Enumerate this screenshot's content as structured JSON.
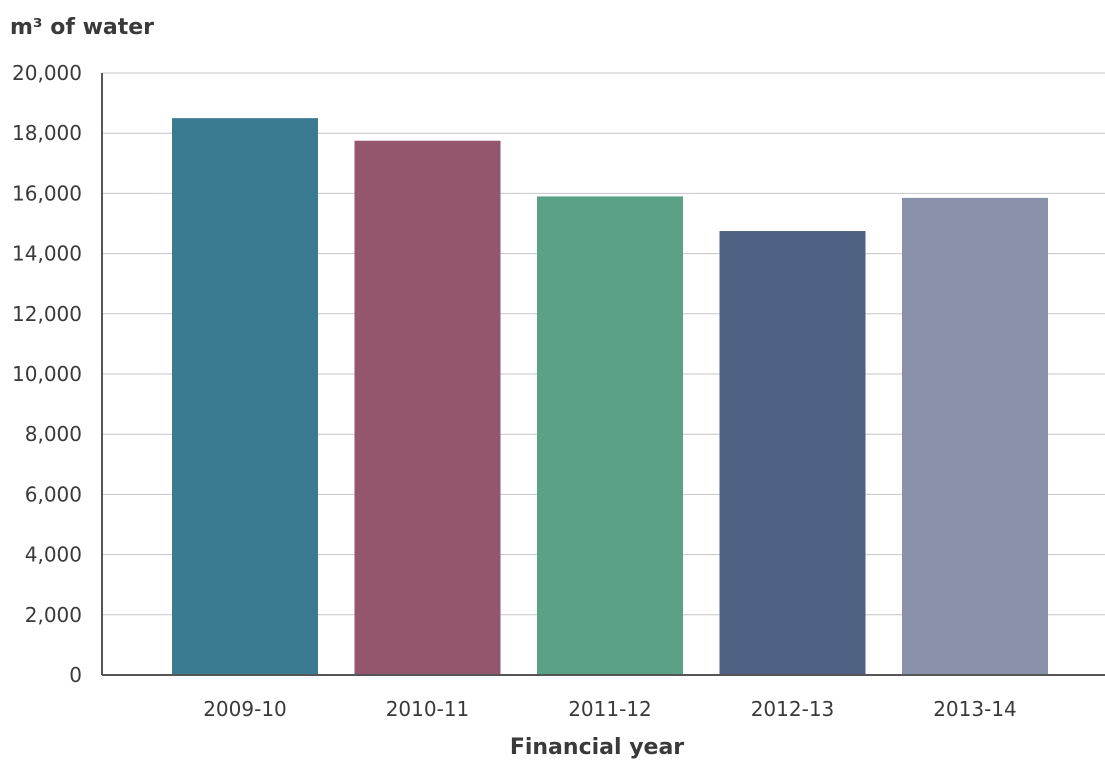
{
  "chart_data": {
    "type": "bar",
    "ylabel": "m³ of water",
    "xlabel": "Financial year",
    "categories": [
      "2009-10",
      "2010-11",
      "2011-12",
      "2012-13",
      "2013-14"
    ],
    "values": [
      18500,
      17750,
      15900,
      14750,
      15850
    ],
    "ylim": [
      0,
      20000
    ],
    "yticks": [
      0,
      2000,
      4000,
      6000,
      8000,
      10000,
      12000,
      14000,
      16000,
      18000,
      20000
    ],
    "ytick_labels": [
      "0",
      "2,000",
      "4,000",
      "6,000",
      "8,000",
      "10,000",
      "12,000",
      "14,000",
      "16,000",
      "18,000",
      "20,000"
    ],
    "colors": [
      "#3a7b92",
      "#94566f",
      "#5ba186",
      "#4f6283",
      "#8891a9"
    ],
    "grid": true,
    "legend": "none"
  }
}
